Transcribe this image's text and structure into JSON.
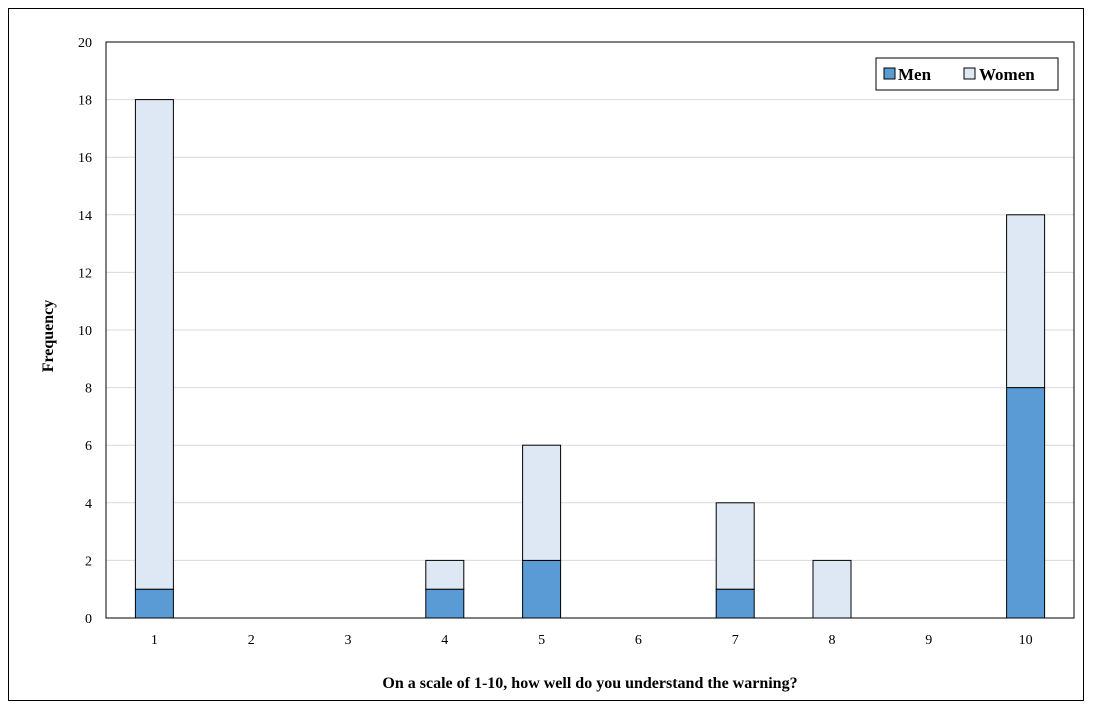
{
  "chart_data": {
    "type": "bar",
    "stacked": true,
    "categories": [
      "1",
      "2",
      "3",
      "4",
      "5",
      "6",
      "7",
      "8",
      "9",
      "10"
    ],
    "series": [
      {
        "name": "Men",
        "values": [
          1,
          0,
          0,
          1,
          2,
          0,
          1,
          0,
          0,
          8
        ],
        "color": "#5b9bd5"
      },
      {
        "name": "Women",
        "values": [
          17,
          0,
          0,
          1,
          4,
          0,
          3,
          2,
          0,
          6
        ],
        "color": "#dee8f4"
      }
    ],
    "xlabel": "On a scale of 1-10, how well do you understand the warning?",
    "ylabel": "Frequency",
    "ylim": [
      0,
      20
    ],
    "yticks": [
      "0",
      "2",
      "4",
      "6",
      "8",
      "10",
      "12",
      "14",
      "16",
      "18",
      "20"
    ],
    "grid": true,
    "legend_position": "top-right"
  }
}
